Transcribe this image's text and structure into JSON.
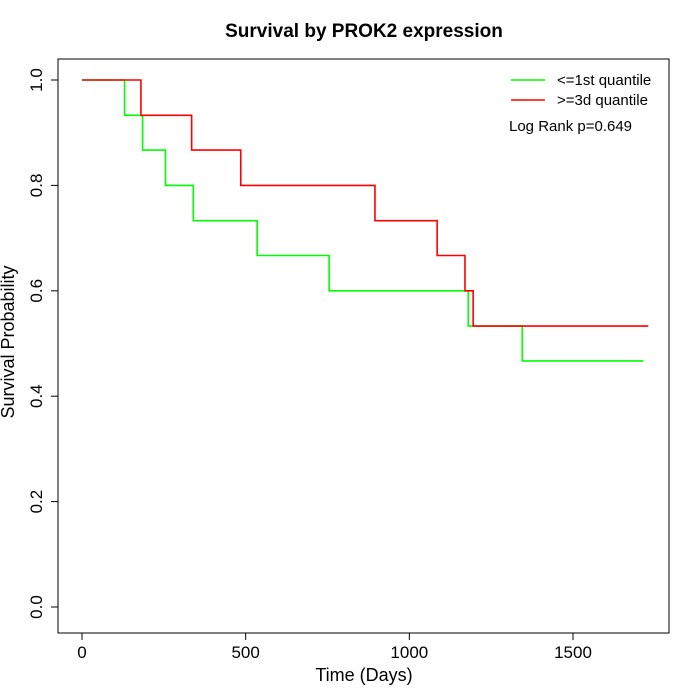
{
  "chart_data": {
    "type": "line",
    "subtype": "kaplan-meier",
    "title": "Survival by PROK2 expression",
    "xlabel": "Time (Days)",
    "ylabel": "Survival Probability",
    "xlim": [
      0,
      1780
    ],
    "ylim": [
      0,
      1.0
    ],
    "xticks": [
      0,
      500,
      1000,
      1500
    ],
    "xtick_labels": [
      "0",
      "500",
      "1000",
      "1500"
    ],
    "yticks": [
      0,
      0.2,
      0.4,
      0.6,
      0.8,
      1.0
    ],
    "ytick_labels": [
      "0.0",
      "0.2",
      "0.4",
      "0.6",
      "0.8",
      "1.0"
    ],
    "grid": false,
    "legend_position": "top-right",
    "annotation": "Log Rank p=0.649",
    "series": [
      {
        "name": "<=1st quantile",
        "color": "#00ff00",
        "x": [
          0,
          130,
          185,
          255,
          340,
          535,
          755,
          1180,
          1345,
          1715
        ],
        "y": [
          1.0,
          0.933,
          0.867,
          0.8,
          0.733,
          0.667,
          0.6,
          0.533,
          0.467,
          0.467
        ]
      },
      {
        "name": ">=3d quantile",
        "color": "#ff0000",
        "x": [
          0,
          180,
          335,
          485,
          895,
          1085,
          1170,
          1195,
          1730
        ],
        "y": [
          1.0,
          0.933,
          0.867,
          0.8,
          0.733,
          0.667,
          0.6,
          0.533,
          0.533
        ]
      }
    ]
  }
}
